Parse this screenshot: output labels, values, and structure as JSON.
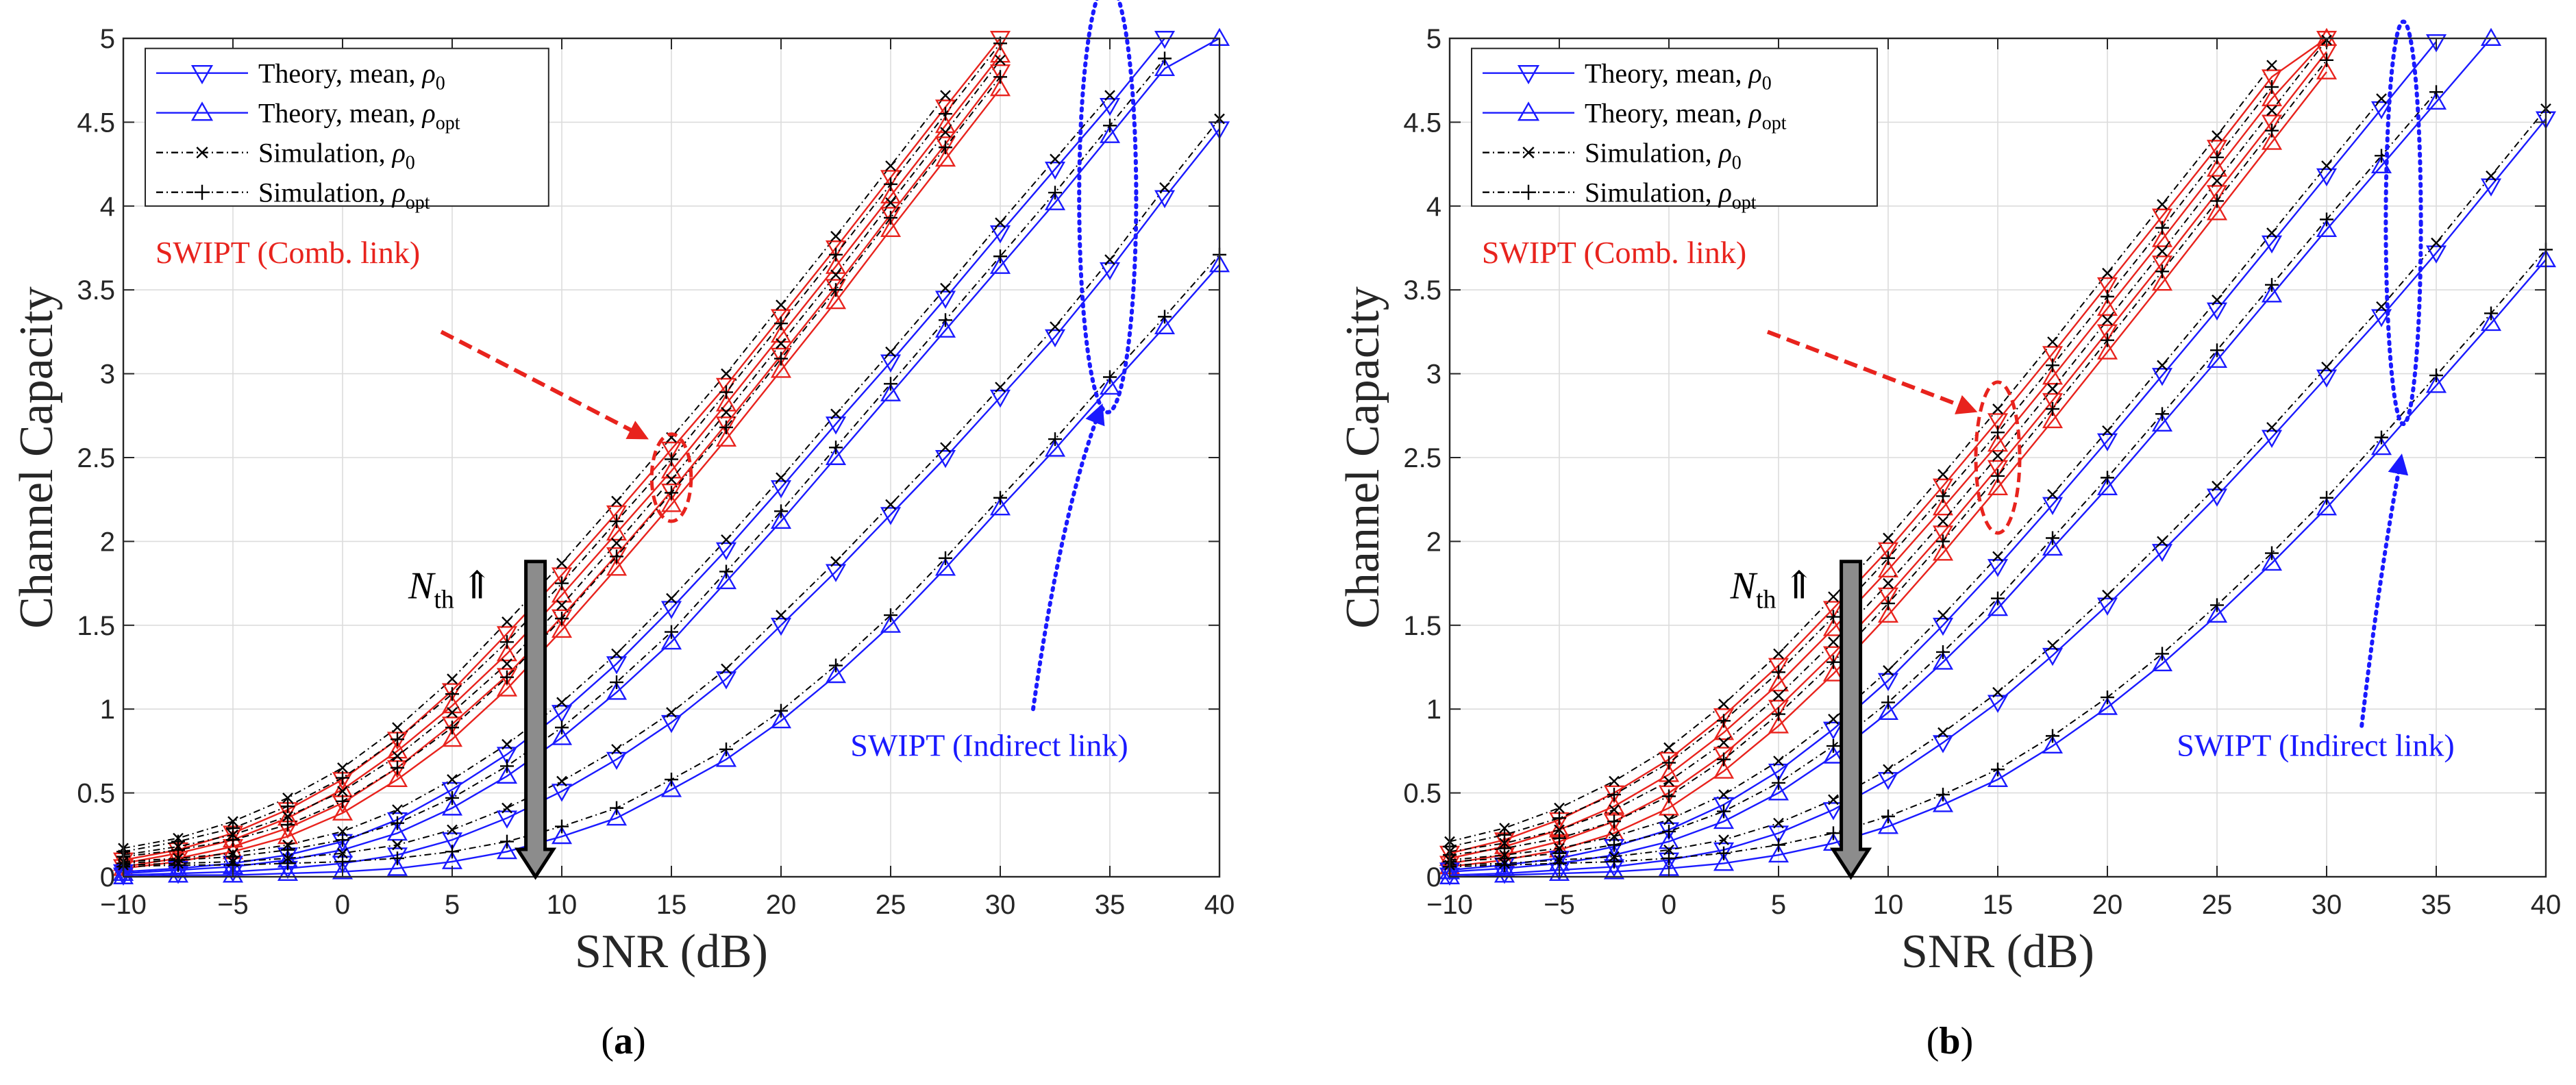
{
  "figure": {
    "panels": [
      {
        "panel_label": "a",
        "xlabel": "SNR (dB)",
        "ylabel": "Channel Capacity",
        "legend": [
          {
            "text": "Theory, mean, ",
            "sym": "ρ",
            "sub": "0",
            "marker": "tri-down"
          },
          {
            "text": "Theory, mean, ",
            "sym": "ρ",
            "sub": "opt",
            "marker": "tri-up"
          },
          {
            "text": "Simulation, ",
            "sym": "ρ",
            "sub": "0",
            "marker": "x"
          },
          {
            "text": "Simulation, ",
            "sym": "ρ",
            "sub": "opt",
            "marker": "plus"
          }
        ],
        "annotations": {
          "comb": "SWIPT (Comb. link)",
          "indirect": "SWIPT (Indirect link)",
          "nth_main": "N",
          "nth_sub": "th",
          "nth_arrow": "⇑"
        }
      },
      {
        "panel_label": "b",
        "xlabel": "SNR (dB)",
        "ylabel": "Channel Capacity",
        "legend": [
          {
            "text": "Theory, mean, ",
            "sym": "ρ",
            "sub": "0",
            "marker": "tri-down"
          },
          {
            "text": "Theory, mean, ",
            "sym": "ρ",
            "sub": "opt",
            "marker": "tri-up"
          },
          {
            "text": "Simulation, ",
            "sym": "ρ",
            "sub": "0",
            "marker": "x"
          },
          {
            "text": "Simulation, ",
            "sym": "ρ",
            "sub": "opt",
            "marker": "plus"
          }
        ],
        "annotations": {
          "comb": "SWIPT (Comb. link)",
          "indirect": "SWIPT (Indirect link)",
          "nth_main": "N",
          "nth_sub": "th",
          "nth_arrow": "⇑"
        }
      }
    ]
  },
  "chart_data": [
    {
      "type": "line",
      "panel": "a",
      "xlabel": "SNR (dB)",
      "ylabel": "Channel Capacity",
      "xlim": [
        -10,
        40
      ],
      "ylim": [
        0,
        5
      ],
      "xticks": [
        -10,
        -5,
        0,
        5,
        10,
        15,
        20,
        25,
        30,
        35,
        40
      ],
      "yticks": [
        0,
        0.5,
        1,
        1.5,
        2,
        2.5,
        3,
        3.5,
        4,
        4.5,
        5
      ],
      "grid": true,
      "legend_position": "top-left",
      "colors": {
        "comb": "#e8231d",
        "indirect": "#1a1aff",
        "sim": "#000000"
      },
      "x": [
        -10,
        -7.5,
        -5,
        -2.5,
        0,
        2.5,
        5,
        7.5,
        10,
        12.5,
        15,
        17.5,
        20,
        22.5,
        25,
        27.5,
        30,
        32.5,
        35,
        37.5,
        40
      ],
      "series": [
        {
          "name": "Theory, mean, ρ0",
          "group": "comb",
          "values": [
            0.1,
            0.16,
            0.26,
            0.4,
            0.58,
            0.82,
            1.11,
            1.45,
            1.8,
            2.17,
            2.55,
            2.93,
            3.34,
            3.75,
            4.17,
            4.59,
            5.0,
            null,
            null,
            null,
            null
          ]
        },
        {
          "name": "Theory, mean, ρopt",
          "group": "comb",
          "values": [
            0.08,
            0.14,
            0.22,
            0.35,
            0.52,
            0.75,
            1.02,
            1.33,
            1.68,
            2.05,
            2.42,
            2.82,
            3.23,
            3.64,
            4.06,
            4.48,
            4.9,
            null,
            null,
            null,
            null
          ]
        },
        {
          "name": "Theory, mean, ρ0",
          "group": "comb",
          "values": [
            0.06,
            0.11,
            0.18,
            0.29,
            0.44,
            0.65,
            0.91,
            1.2,
            1.55,
            1.92,
            2.3,
            2.7,
            3.11,
            3.52,
            3.95,
            4.37,
            4.8,
            null,
            null,
            null,
            null
          ]
        },
        {
          "name": "Theory, mean, ρopt",
          "group": "comb",
          "values": [
            0.05,
            0.09,
            0.15,
            0.24,
            0.38,
            0.58,
            0.82,
            1.12,
            1.47,
            1.84,
            2.22,
            2.61,
            3.02,
            3.43,
            3.86,
            4.28,
            4.7,
            null,
            null,
            null,
            null
          ]
        },
        {
          "name": "Theory, mean, ρ0",
          "group": "indirect",
          "values": [
            0.03,
            0.05,
            0.08,
            0.13,
            0.21,
            0.34,
            0.52,
            0.73,
            0.98,
            1.27,
            1.6,
            1.95,
            2.32,
            2.7,
            3.07,
            3.45,
            3.84,
            4.22,
            4.6,
            5.0,
            null
          ]
        },
        {
          "name": "Theory, mean, ρopt",
          "group": "indirect",
          "values": [
            0.02,
            0.04,
            0.06,
            0.1,
            0.16,
            0.26,
            0.41,
            0.6,
            0.83,
            1.1,
            1.4,
            1.76,
            2.12,
            2.5,
            2.88,
            3.26,
            3.64,
            4.02,
            4.42,
            4.82,
            5.0
          ]
        },
        {
          "name": "Theory, mean, ρ0",
          "group": "indirect",
          "values": [
            0.01,
            0.02,
            0.03,
            0.05,
            0.08,
            0.13,
            0.22,
            0.35,
            0.51,
            0.7,
            0.92,
            1.18,
            1.5,
            1.82,
            2.16,
            2.5,
            2.86,
            3.22,
            3.62,
            4.05,
            4.46
          ]
        },
        {
          "name": "Theory, mean, ρopt",
          "group": "indirect",
          "values": [
            0.0,
            0.01,
            0.01,
            0.02,
            0.03,
            0.05,
            0.09,
            0.15,
            0.24,
            0.35,
            0.52,
            0.7,
            0.93,
            1.2,
            1.5,
            1.84,
            2.2,
            2.55,
            2.92,
            3.28,
            3.65
          ]
        }
      ]
    },
    {
      "type": "line",
      "panel": "b",
      "xlabel": "SNR (dB)",
      "ylabel": "Channel Capacity",
      "xlim": [
        -10,
        40
      ],
      "ylim": [
        0,
        5
      ],
      "xticks": [
        -10,
        -5,
        0,
        5,
        10,
        15,
        20,
        25,
        30,
        35,
        40
      ],
      "yticks": [
        0,
        0.5,
        1,
        1.5,
        2,
        2.5,
        3,
        3.5,
        4,
        4.5,
        5
      ],
      "grid": true,
      "legend_position": "top-left",
      "colors": {
        "comb": "#e8231d",
        "indirect": "#1a1aff",
        "sim": "#000000"
      },
      "x": [
        -10,
        -7.5,
        -5,
        -2.5,
        0,
        2.5,
        5,
        7.5,
        10,
        12.5,
        15,
        17.5,
        20,
        22.5,
        25,
        27.5,
        30,
        32.5,
        35,
        37.5,
        40
      ],
      "series": [
        {
          "name": "Theory, mean, ρ0",
          "group": "comb",
          "values": [
            0.14,
            0.22,
            0.34,
            0.5,
            0.7,
            0.96,
            1.26,
            1.6,
            1.95,
            2.33,
            2.72,
            3.12,
            3.53,
            3.94,
            4.35,
            4.77,
            5.0,
            null,
            null,
            null,
            null
          ]
        },
        {
          "name": "Theory, mean, ρopt",
          "group": "comb",
          "values": [
            0.11,
            0.18,
            0.28,
            0.42,
            0.61,
            0.86,
            1.15,
            1.48,
            1.83,
            2.2,
            2.58,
            2.98,
            3.39,
            3.8,
            4.22,
            4.64,
            5.0,
            null,
            null,
            null,
            null
          ]
        },
        {
          "name": "Theory, mean, ρ0",
          "group": "comb",
          "values": [
            0.08,
            0.13,
            0.21,
            0.33,
            0.5,
            0.73,
            1.01,
            1.33,
            1.68,
            2.05,
            2.44,
            2.84,
            3.25,
            3.66,
            4.08,
            4.5,
            4.92,
            null,
            null,
            null,
            null
          ]
        },
        {
          "name": "Theory, mean, ρopt",
          "group": "comb",
          "values": [
            0.06,
            0.1,
            0.16,
            0.26,
            0.41,
            0.63,
            0.9,
            1.21,
            1.56,
            1.93,
            2.32,
            2.72,
            3.13,
            3.54,
            3.96,
            4.38,
            4.8,
            null,
            null,
            null,
            null
          ]
        },
        {
          "name": "Theory, mean, ρ0",
          "group": "indirect",
          "values": [
            0.04,
            0.07,
            0.11,
            0.18,
            0.28,
            0.43,
            0.63,
            0.88,
            1.17,
            1.5,
            1.85,
            2.22,
            2.6,
            2.99,
            3.38,
            3.78,
            4.18,
            4.58,
            4.98,
            null,
            null
          ]
        },
        {
          "name": "Theory, mean, ρopt",
          "group": "indirect",
          "values": [
            0.03,
            0.05,
            0.08,
            0.13,
            0.21,
            0.33,
            0.5,
            0.72,
            0.98,
            1.28,
            1.6,
            1.96,
            2.32,
            2.7,
            3.08,
            3.47,
            3.86,
            4.24,
            4.62,
            5.0,
            null
          ]
        },
        {
          "name": "Theory, mean, ρ0",
          "group": "indirect",
          "values": [
            0.01,
            0.02,
            0.04,
            0.06,
            0.1,
            0.16,
            0.26,
            0.4,
            0.58,
            0.8,
            1.04,
            1.32,
            1.62,
            1.94,
            2.27,
            2.62,
            2.98,
            3.34,
            3.72,
            4.12,
            4.52
          ]
        },
        {
          "name": "Theory, mean, ρopt",
          "group": "indirect",
          "values": [
            0.0,
            0.01,
            0.02,
            0.03,
            0.05,
            0.08,
            0.13,
            0.2,
            0.3,
            0.43,
            0.58,
            0.78,
            1.01,
            1.27,
            1.56,
            1.87,
            2.2,
            2.56,
            2.93,
            3.3,
            3.68
          ]
        }
      ]
    }
  ]
}
